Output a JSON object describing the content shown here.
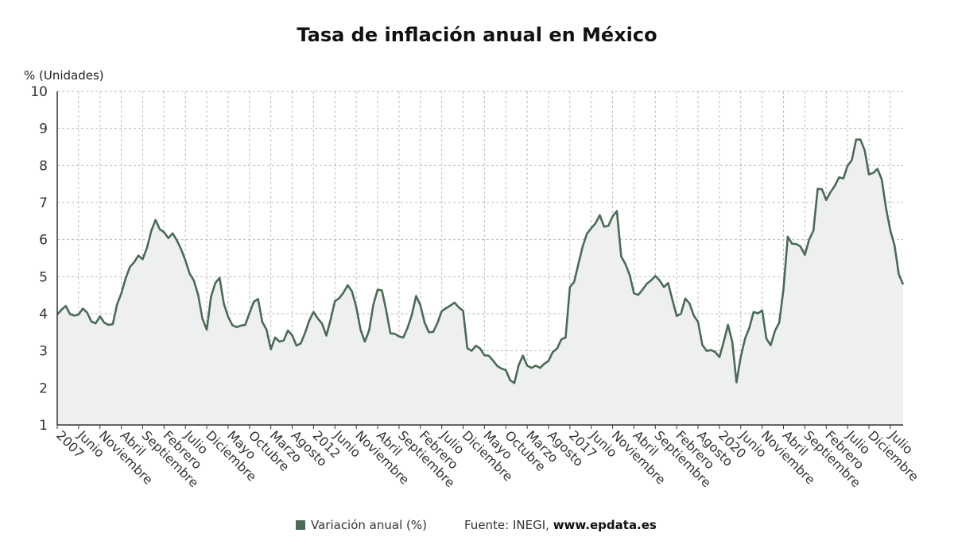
{
  "title": "Tasa de inflación anual en México",
  "footer": {
    "legend_label": "Variación anual (%)",
    "source_prefix": "Fuente: INEGI, ",
    "source_url": "www.epdata.es"
  },
  "colors": {
    "line": "#4a6b55",
    "fill": "#eef0ef",
    "grid": "#bbbbbb",
    "axis": "#333333"
  },
  "chart_data": {
    "type": "area",
    "ylabel": "% (Unidades)",
    "ylim": [
      1,
      10
    ],
    "yticks": [
      1,
      2,
      3,
      4,
      5,
      6,
      7,
      8,
      9,
      10
    ],
    "grid": true,
    "legend_position": "bottom",
    "x_tick_labels": [
      "2007",
      "Junio",
      "Noviembre",
      "Abril",
      "Septiembre",
      "Febrero",
      "Julio",
      "Diciembre",
      "Mayo",
      "Octubre",
      "Marzo",
      "Agosto",
      "2012",
      "Junio",
      "Noviembre",
      "Abril",
      "Septiembre",
      "Febrero",
      "Julio",
      "Diciembre",
      "Mayo",
      "Octubre",
      "Marzo",
      "Agosto",
      "2017",
      "Junio",
      "Noviembre",
      "Abril",
      "Septiembre",
      "Febrero",
      "Agosto",
      "2020",
      "Junio",
      "Noviembre",
      "Abril",
      "Septiembre",
      "Febrero",
      "Julio",
      "Diciembre",
      "Julio"
    ],
    "series": [
      {
        "name": "Variación anual (%)",
        "x": [
          "2007-01",
          "2007-02",
          "2007-03",
          "2007-04",
          "2007-05",
          "2007-06",
          "2007-07",
          "2007-08",
          "2007-09",
          "2007-10",
          "2007-11",
          "2007-12",
          "2008-01",
          "2008-02",
          "2008-03",
          "2008-04",
          "2008-05",
          "2008-06",
          "2008-07",
          "2008-08",
          "2008-09",
          "2008-10",
          "2008-11",
          "2008-12",
          "2009-01",
          "2009-02",
          "2009-03",
          "2009-04",
          "2009-05",
          "2009-06",
          "2009-07",
          "2009-08",
          "2009-09",
          "2009-10",
          "2009-11",
          "2009-12",
          "2010-01",
          "2010-02",
          "2010-03",
          "2010-04",
          "2010-05",
          "2010-06",
          "2010-07",
          "2010-08",
          "2010-09",
          "2010-10",
          "2010-11",
          "2010-12",
          "2011-01",
          "2011-02",
          "2011-03",
          "2011-04",
          "2011-05",
          "2011-06",
          "2011-07",
          "2011-08",
          "2011-09",
          "2011-10",
          "2011-11",
          "2011-12",
          "2012-01",
          "2012-02",
          "2012-03",
          "2012-04",
          "2012-05",
          "2012-06",
          "2012-07",
          "2012-08",
          "2012-09",
          "2012-10",
          "2012-11",
          "2012-12",
          "2013-01",
          "2013-02",
          "2013-03",
          "2013-04",
          "2013-05",
          "2013-06",
          "2013-07",
          "2013-08",
          "2013-09",
          "2013-10",
          "2013-11",
          "2013-12",
          "2014-01",
          "2014-02",
          "2014-03",
          "2014-04",
          "2014-05",
          "2014-06",
          "2014-07",
          "2014-08",
          "2014-09",
          "2014-10",
          "2014-11",
          "2014-12",
          "2015-01",
          "2015-02",
          "2015-03",
          "2015-04",
          "2015-05",
          "2015-06",
          "2015-07",
          "2015-08",
          "2015-09",
          "2015-10",
          "2015-11",
          "2015-12",
          "2016-01",
          "2016-02",
          "2016-03",
          "2016-04",
          "2016-05",
          "2016-06",
          "2016-07",
          "2016-08",
          "2016-09",
          "2016-10",
          "2016-11",
          "2016-12",
          "2017-01",
          "2017-02",
          "2017-03",
          "2017-04",
          "2017-05",
          "2017-06",
          "2017-07",
          "2017-08",
          "2017-09",
          "2017-10",
          "2017-11",
          "2017-12",
          "2018-01",
          "2018-02",
          "2018-03",
          "2018-04",
          "2018-05",
          "2018-06",
          "2018-07",
          "2018-08",
          "2018-09",
          "2018-10",
          "2018-11",
          "2018-12",
          "2019-01",
          "2019-02",
          "2019-03",
          "2019-04",
          "2019-05",
          "2019-06",
          "2019-07",
          "2019-08",
          "2019-09",
          "2019-10",
          "2019-11",
          "2019-12",
          "2020-01",
          "2020-02",
          "2020-03",
          "2020-04",
          "2020-05",
          "2020-06",
          "2020-07",
          "2020-08",
          "2020-09",
          "2020-10",
          "2020-11",
          "2020-12",
          "2021-01",
          "2021-02",
          "2021-03",
          "2021-04",
          "2021-05",
          "2021-06",
          "2021-07",
          "2021-08",
          "2021-09",
          "2021-10",
          "2021-11",
          "2021-12",
          "2022-01",
          "2022-02",
          "2022-03",
          "2022-04",
          "2022-05",
          "2022-06",
          "2022-07",
          "2022-08",
          "2022-09",
          "2022-10",
          "2022-11",
          "2022-12",
          "2023-01",
          "2023-02",
          "2023-03",
          "2023-04",
          "2023-05",
          "2023-06",
          "2023-07"
        ],
        "values": [
          3.98,
          4.11,
          4.21,
          3.99,
          3.95,
          3.98,
          4.14,
          4.03,
          3.79,
          3.74,
          3.93,
          3.76,
          3.7,
          3.72,
          4.25,
          4.55,
          4.95,
          5.26,
          5.39,
          5.57,
          5.47,
          5.78,
          6.23,
          6.53,
          6.28,
          6.2,
          6.04,
          6.17,
          5.98,
          5.74,
          5.44,
          5.08,
          4.89,
          4.5,
          3.86,
          3.57,
          4.46,
          4.83,
          4.97,
          4.27,
          3.92,
          3.69,
          3.64,
          3.68,
          3.7,
          4.02,
          4.32,
          4.4,
          3.78,
          3.57,
          3.04,
          3.36,
          3.25,
          3.28,
          3.55,
          3.42,
          3.14,
          3.2,
          3.48,
          3.82,
          4.05,
          3.87,
          3.73,
          3.41,
          3.85,
          4.34,
          4.42,
          4.57,
          4.77,
          4.6,
          4.18,
          3.57,
          3.25,
          3.55,
          4.25,
          4.65,
          4.63,
          4.09,
          3.47,
          3.46,
          3.39,
          3.36,
          3.62,
          3.97,
          4.48,
          4.23,
          3.76,
          3.5,
          3.51,
          3.75,
          4.07,
          4.15,
          4.22,
          4.3,
          4.17,
          4.08,
          3.07,
          3.0,
          3.14,
          3.06,
          2.88,
          2.87,
          2.74,
          2.59,
          2.52,
          2.48,
          2.21,
          2.13,
          2.61,
          2.87,
          2.6,
          2.54,
          2.6,
          2.54,
          2.65,
          2.73,
          2.97,
          3.06,
          3.31,
          3.36,
          4.72,
          4.86,
          5.35,
          5.82,
          6.16,
          6.31,
          6.44,
          6.66,
          6.35,
          6.37,
          6.63,
          6.77,
          5.55,
          5.34,
          5.04,
          4.55,
          4.51,
          4.65,
          4.81,
          4.9,
          5.02,
          4.9,
          4.72,
          4.83,
          4.37,
          3.94,
          4.0,
          4.41,
          4.28,
          3.95,
          3.78,
          3.16,
          3.0,
          3.02,
          2.97,
          2.83,
          3.24,
          3.7,
          3.25,
          2.15,
          2.84,
          3.33,
          3.62,
          4.05,
          4.01,
          4.09,
          3.33,
          3.15,
          3.54,
          3.76,
          4.67,
          6.08,
          5.89,
          5.88,
          5.81,
          5.59,
          6.0,
          6.24,
          7.37,
          7.36,
          7.07,
          7.28,
          7.45,
          7.68,
          7.65,
          7.99,
          8.15,
          8.7,
          8.7,
          8.41,
          7.76,
          7.8,
          7.91,
          7.62,
          6.85,
          6.25,
          5.84,
          5.06,
          4.79
        ]
      }
    ]
  }
}
